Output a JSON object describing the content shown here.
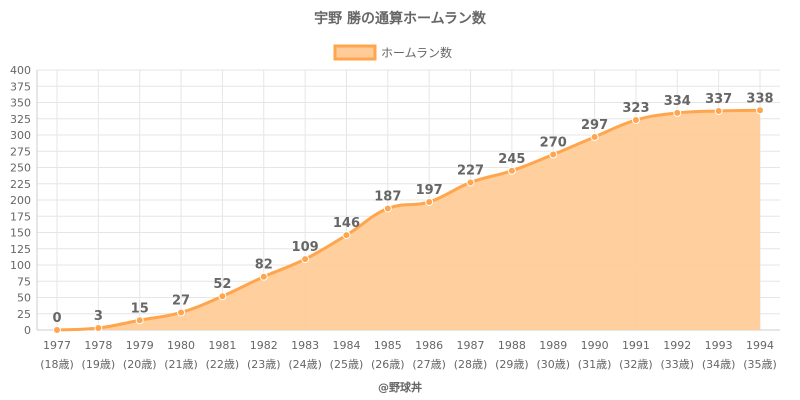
{
  "chart_data": {
    "type": "area",
    "title": "宇野 勝の通算ホームラン数",
    "legend": {
      "label": "ホームラン数",
      "position": "top"
    },
    "x": [
      "1977",
      "1978",
      "1979",
      "1980",
      "1981",
      "1982",
      "1983",
      "1984",
      "1985",
      "1986",
      "1987",
      "1988",
      "1989",
      "1990",
      "1991",
      "1992",
      "1993",
      "1994"
    ],
    "x_sub": [
      "(18歳)",
      "(19歳)",
      "(20歳)",
      "(21歳)",
      "(22歳)",
      "(23歳)",
      "(24歳)",
      "(25歳)",
      "(26歳)",
      "(27歳)",
      "(28歳)",
      "(29歳)",
      "(30歳)",
      "(31歳)",
      "(32歳)",
      "(33歳)",
      "(34歳)",
      "(35歳)"
    ],
    "series": [
      {
        "name": "ホームラン数",
        "values": [
          0,
          3,
          15,
          27,
          52,
          82,
          109,
          146,
          187,
          197,
          227,
          245,
          270,
          297,
          323,
          334,
          337,
          338
        ]
      }
    ],
    "ylim": [
      0,
      400
    ],
    "ytick_step": 25,
    "grid": true,
    "colors": {
      "line": "#ffa54d",
      "fill": "#ffcc99",
      "point": "#ffa54d"
    }
  },
  "watermark": "@野球丼"
}
